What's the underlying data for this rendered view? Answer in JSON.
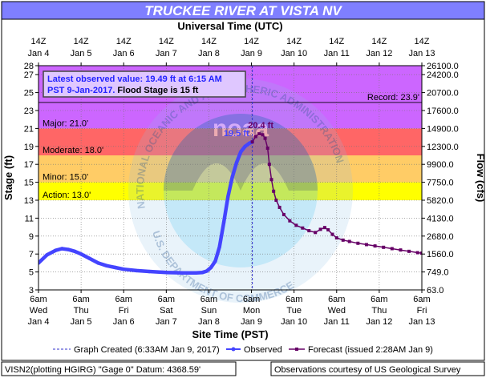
{
  "chart_data": {
    "type": "line",
    "title": "TRUCKEE RIVER AT VISTA NV",
    "top_axis_title": "Universal Time (UTC)",
    "top_ticks": [
      [
        "14Z",
        "Jan 4"
      ],
      [
        "14Z",
        "Jan 5"
      ],
      [
        "14Z",
        "Jan 6"
      ],
      [
        "14Z",
        "Jan 7"
      ],
      [
        "14Z",
        "Jan 8"
      ],
      [
        "14Z",
        "Jan 9"
      ],
      [
        "14Z",
        "Jan 10"
      ],
      [
        "14Z",
        "Jan 11"
      ],
      [
        "14Z",
        "Jan 12"
      ],
      [
        "14Z",
        "Jan 13"
      ]
    ],
    "bottom_axis_title": "Site Time (PST)",
    "bottom_ticks": [
      [
        "6am",
        "Wed",
        "Jan 4"
      ],
      [
        "6am",
        "Thu",
        "Jan 5"
      ],
      [
        "6am",
        "Fri",
        "Jan 6"
      ],
      [
        "6am",
        "Sat",
        "Jan 7"
      ],
      [
        "6am",
        "Sun",
        "Jan 8"
      ],
      [
        "6am",
        "Mon",
        "Jan 9"
      ],
      [
        "6am",
        "Tue",
        "Jan 10"
      ],
      [
        "6am",
        "Wed",
        "Jan 11"
      ],
      [
        "6am",
        "Thu",
        "Jan 12"
      ],
      [
        "6am",
        "Fri",
        "Jan 13"
      ]
    ],
    "ylabel_left": "Stage (ft)",
    "ylabel_right": "Flow (cfs)",
    "ylim": [
      3,
      28
    ],
    "xlim": [
      0,
      9
    ],
    "x_units": "days since Wed Jan 4 6am PST",
    "left_ticks": [
      "3",
      "5",
      "7",
      "9",
      "11",
      "13",
      "15",
      "17",
      "19",
      "21",
      "23",
      "25",
      "27",
      "28"
    ],
    "left_tick_values": [
      3,
      5,
      7,
      9,
      11,
      13,
      15,
      17,
      19,
      21,
      23,
      25,
      27,
      28
    ],
    "right_ticks": [
      {
        "stage": 3,
        "label": "63.0"
      },
      {
        "stage": 5,
        "label": "749.0"
      },
      {
        "stage": 7,
        "label": "1560.0"
      },
      {
        "stage": 9,
        "label": "2680.0"
      },
      {
        "stage": 11,
        "label": "4130.0"
      },
      {
        "stage": 13,
        "label": "5820.0"
      },
      {
        "stage": 15,
        "label": "7750.0"
      },
      {
        "stage": 17,
        "label": "9900.0"
      },
      {
        "stage": 19,
        "label": "12300.0"
      },
      {
        "stage": 21,
        "label": "14900.0"
      },
      {
        "stage": 23,
        "label": "17600.0"
      },
      {
        "stage": 25,
        "label": "20700.0"
      },
      {
        "stage": 27,
        "label": "24200.0"
      },
      {
        "stage": 28,
        "label": "26100.0"
      }
    ],
    "bands": [
      {
        "name": "action",
        "from": 13,
        "to": 15,
        "color": "#ffff00"
      },
      {
        "name": "minor",
        "from": 15,
        "to": 18,
        "color": "#ffcc66"
      },
      {
        "name": "moderate",
        "from": 18,
        "to": 21,
        "color": "#ff6666"
      },
      {
        "name": "major",
        "from": 21,
        "to": 28,
        "color": "#cc66ff"
      }
    ],
    "threshold_labels": [
      {
        "text": "Major: 21.0'",
        "stage": 21
      },
      {
        "text": "Moderate: 18.0'",
        "stage": 18
      },
      {
        "text": "Minor: 15.0'",
        "stage": 15
      },
      {
        "text": "Action: 13.0'",
        "stage": 13
      }
    ],
    "record": {
      "text": "Record: 23.9'",
      "stage": 23.9
    },
    "info_box": {
      "line1": "Latest observed value: 19.49 ft at 6:15 AM",
      "line2_blue": "PST 9-Jan-2017.",
      "line2_black": " Flood Stage is 15 ft"
    },
    "graph_created_x": 5.02,
    "series": [
      {
        "name": "Observed",
        "color": "#4444ff",
        "peak_label": "19.5 ft",
        "points": [
          [
            0.0,
            6.0
          ],
          [
            0.2,
            6.9
          ],
          [
            0.4,
            7.4
          ],
          [
            0.55,
            7.6
          ],
          [
            0.7,
            7.5
          ],
          [
            0.85,
            7.3
          ],
          [
            1.0,
            7.0
          ],
          [
            1.2,
            6.5
          ],
          [
            1.4,
            6.0
          ],
          [
            1.6,
            5.7
          ],
          [
            1.8,
            5.5
          ],
          [
            2.0,
            5.3
          ],
          [
            2.3,
            5.15
          ],
          [
            2.6,
            5.05
          ],
          [
            3.0,
            4.95
          ],
          [
            3.4,
            4.9
          ],
          [
            3.7,
            4.9
          ],
          [
            3.85,
            4.95
          ],
          [
            3.95,
            5.1
          ],
          [
            4.05,
            5.5
          ],
          [
            4.15,
            6.2
          ],
          [
            4.25,
            7.8
          ],
          [
            4.35,
            10.5
          ],
          [
            4.45,
            13.4
          ],
          [
            4.55,
            15.6
          ],
          [
            4.65,
            17.2
          ],
          [
            4.75,
            18.4
          ],
          [
            4.85,
            19.0
          ],
          [
            4.95,
            19.35
          ],
          [
            5.02,
            19.5
          ]
        ]
      },
      {
        "name": "Forecast (issued 2:28AM Jan 9)",
        "color": "#660066",
        "peak_label": "20.4 ft",
        "points": [
          [
            5.02,
            19.5
          ],
          [
            5.1,
            20.1
          ],
          [
            5.18,
            20.4
          ],
          [
            5.26,
            20.3
          ],
          [
            5.32,
            19.9
          ],
          [
            5.38,
            18.8
          ],
          [
            5.42,
            17.0
          ],
          [
            5.47,
            15.3
          ],
          [
            5.52,
            14.0
          ],
          [
            5.58,
            13.0
          ],
          [
            5.66,
            12.2
          ],
          [
            5.76,
            11.4
          ],
          [
            5.9,
            10.7
          ],
          [
            6.05,
            10.2
          ],
          [
            6.2,
            9.9
          ],
          [
            6.35,
            9.6
          ],
          [
            6.5,
            9.4
          ],
          [
            6.62,
            9.75
          ],
          [
            6.72,
            9.95
          ],
          [
            6.8,
            9.7
          ],
          [
            6.9,
            9.2
          ],
          [
            7.0,
            8.8
          ],
          [
            7.15,
            8.55
          ],
          [
            7.3,
            8.4
          ],
          [
            7.5,
            8.2
          ],
          [
            7.7,
            8.05
          ],
          [
            7.9,
            7.9
          ],
          [
            8.1,
            7.75
          ],
          [
            8.3,
            7.6
          ],
          [
            8.5,
            7.45
          ],
          [
            8.7,
            7.3
          ],
          [
            8.9,
            7.15
          ],
          [
            9.0,
            7.1
          ]
        ]
      }
    ]
  },
  "legend": {
    "graph_created": "Graph Created (6:33AM Jan 9, 2017)",
    "observed": "Observed",
    "forecast": "Forecast (issued 2:28AM Jan 9)"
  },
  "footer": {
    "left": "VISN2(plotting HGIRG) \"Gage 0\" Datum: 4368.59'",
    "right": "Observations courtesy of US Geological Survey"
  },
  "watermark": {
    "arc_top": "NATIONAL OCEANIC AND ATMOSPHERIC ADMINISTRATION",
    "arc_bottom": "U.S. DEPARTMENT OF COMMERCE",
    "center": "noaa"
  },
  "colors": {
    "title_bar": "#7f7fff",
    "plot_bg": "#ffffff",
    "frame": "#000000"
  }
}
